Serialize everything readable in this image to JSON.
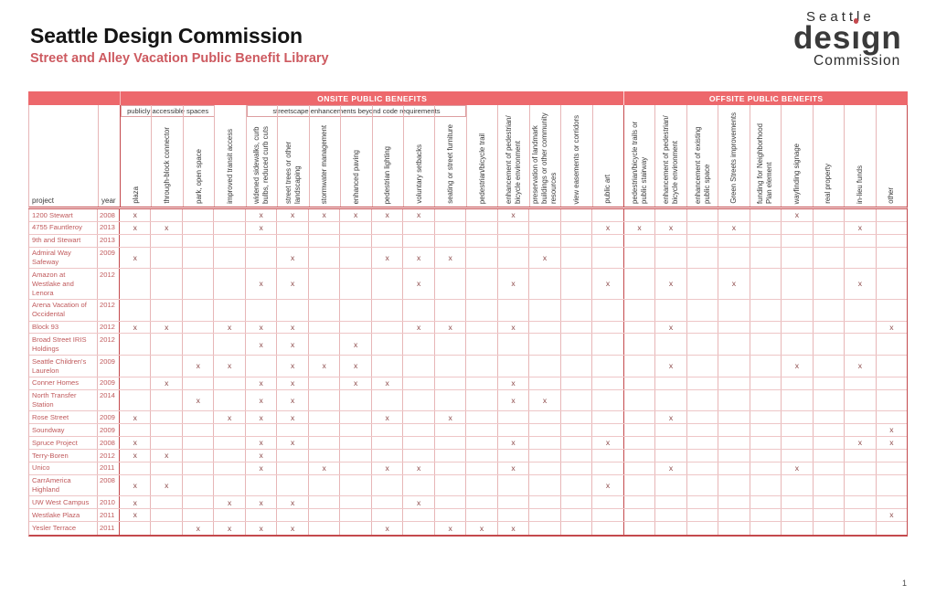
{
  "header": {
    "title": "Seattle Design Commission",
    "subtitle": "Street and Alley Vacation Public Benefit Library"
  },
  "logo": {
    "line1": "Seattle",
    "line2": "design",
    "design_pre": "des",
    "design_i": "i",
    "design_post": "gn",
    "line3": "Commission"
  },
  "colors": {
    "banner_red": "#ed686c",
    "accent_dark_red": "#c4494d",
    "grid_pink": "#e7b6b7",
    "project_text_red": "#c05a5c",
    "mark_color": "#8d4a4a",
    "subtitle_red": "#cd5a60"
  },
  "table": {
    "banner": {
      "onsite": "ONSITE PUBLIC BENEFITS",
      "offsite": "OFFSITE PUBLIC BENEFITS"
    },
    "corner": {
      "project": "project",
      "year": "year"
    },
    "mark_symbol": "x",
    "groups": [
      {
        "label": "publicly accessible spaces",
        "start": 0,
        "span": 3
      },
      {
        "label": "streetscape enhancements beyond code requirements",
        "start": 4,
        "span": 7
      }
    ],
    "columns": [
      {
        "label": "plaza",
        "section": "onsite"
      },
      {
        "label": "through-block connector",
        "section": "onsite"
      },
      {
        "label": "park, open space",
        "section": "onsite"
      },
      {
        "label": "improved transit access",
        "section": "onsite"
      },
      {
        "label": "widened sidewalks, curb bulbs, reduced curb cuts",
        "section": "onsite"
      },
      {
        "label": "street trees or other landscaping",
        "section": "onsite"
      },
      {
        "label": "stormwater management",
        "section": "onsite"
      },
      {
        "label": "enhanced paving",
        "section": "onsite"
      },
      {
        "label": "pedestrian lighting",
        "section": "onsite"
      },
      {
        "label": "voluntary setbacks",
        "section": "onsite"
      },
      {
        "label": "seating or street furniture",
        "section": "onsite"
      },
      {
        "label": "pedestrian/bicycle trail",
        "section": "onsite"
      },
      {
        "label": "enhancement of pedestrian/ bicycle environment",
        "section": "onsite"
      },
      {
        "label": "preservation of landmark buildings or other community resources",
        "section": "onsite"
      },
      {
        "label": "view easements or corridors",
        "section": "onsite"
      },
      {
        "label": "public art",
        "section": "onsite"
      },
      {
        "label": "pedestrian/bicycle trails or public stairway",
        "section": "offsite"
      },
      {
        "label": "enhancement of pedestrian/ bicycle environment",
        "section": "offsite"
      },
      {
        "label": "enhancement of existing public space",
        "section": "offsite"
      },
      {
        "label": "Green Streets improvements",
        "section": "offsite"
      },
      {
        "label": "funding for Neighborhood Plan element",
        "section": "offsite"
      },
      {
        "label": "wayfinding signage",
        "section": "offsite"
      },
      {
        "label": "real property",
        "section": "offsite"
      },
      {
        "label": "in-lieu funds",
        "section": "offsite"
      },
      {
        "label": "other",
        "section": "offsite"
      }
    ],
    "rows": [
      {
        "project": "1200 Stewart",
        "year": "2008",
        "marks": [
          1,
          5,
          6,
          7,
          8,
          9,
          10,
          13,
          22
        ]
      },
      {
        "project": "4755 Fauntleroy",
        "year": "2013",
        "marks": [
          1,
          2,
          5,
          16,
          17,
          18,
          20,
          24
        ]
      },
      {
        "project": "9th and Stewart",
        "year": "2013",
        "marks": []
      },
      {
        "project": "Admiral Way Safeway",
        "year": "2009",
        "marks": [
          1,
          6,
          9,
          10,
          11,
          14
        ]
      },
      {
        "project": "Amazon at Westlake and Lenora",
        "year": "2012",
        "marks": [
          5,
          6,
          10,
          13,
          16,
          18,
          20,
          24
        ]
      },
      {
        "project": "Arena Vacation of Occidental",
        "year": "2012",
        "marks": []
      },
      {
        "project": "Block 93",
        "year": "2012",
        "marks": [
          1,
          2,
          4,
          5,
          6,
          10,
          11,
          13,
          18,
          25
        ]
      },
      {
        "project": "Broad Street IRIS Holdings",
        "year": "2012",
        "marks": [
          5,
          6,
          8
        ]
      },
      {
        "project": "Seattle Children's Laurelon",
        "year": "2009",
        "marks": [
          3,
          4,
          6,
          7,
          8,
          18,
          22,
          24
        ]
      },
      {
        "project": "Conner Homes",
        "year": "2009",
        "marks": [
          2,
          5,
          6,
          8,
          9,
          13
        ]
      },
      {
        "project": "North Transfer Station",
        "year": "2014",
        "marks": [
          3,
          5,
          6,
          13,
          14
        ]
      },
      {
        "project": "Rose Street",
        "year": "2009",
        "marks": [
          1,
          4,
          5,
          6,
          9,
          11,
          18
        ]
      },
      {
        "project": "Soundway",
        "year": "2009",
        "marks": [
          25
        ]
      },
      {
        "project": "Spruce Project",
        "year": "2008",
        "marks": [
          1,
          5,
          6,
          13,
          16,
          24,
          25
        ]
      },
      {
        "project": "Terry-Boren",
        "year": "2012",
        "marks": [
          1,
          2,
          5
        ]
      },
      {
        "project": "Unico",
        "year": "2011",
        "marks": [
          5,
          7,
          9,
          10,
          13,
          18,
          22
        ]
      },
      {
        "project": "CarrAmerica Highland",
        "year": "2008",
        "marks": [
          1,
          2,
          16
        ]
      },
      {
        "project": "UW West Campus",
        "year": "2010",
        "marks": [
          1,
          4,
          5,
          6,
          10
        ]
      },
      {
        "project": "Westlake Plaza",
        "year": "2011",
        "marks": [
          1,
          25
        ]
      },
      {
        "project": "Yesler Terrace",
        "year": "2011",
        "marks": [
          3,
          4,
          5,
          6,
          9,
          11,
          12,
          13
        ]
      }
    ]
  },
  "footer": {
    "page": "1"
  }
}
